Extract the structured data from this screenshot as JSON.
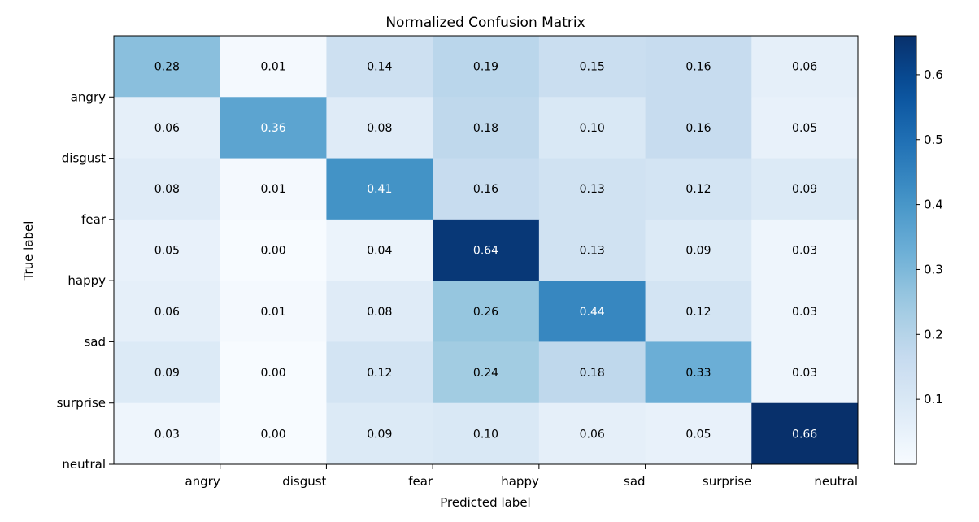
{
  "chart_data": {
    "type": "heatmap",
    "title": "Normalized Confusion Matrix",
    "xlabel": "Predicted label",
    "ylabel": "True label",
    "x_tick_labels": [
      "angry",
      "disgust",
      "fear",
      "happy",
      "sad",
      "surprise",
      "neutral"
    ],
    "y_tick_labels": [
      "angry",
      "disgust",
      "fear",
      "happy",
      "sad",
      "surprise",
      "neutral"
    ],
    "matrix": [
      [
        0.28,
        0.01,
        0.14,
        0.19,
        0.15,
        0.16,
        0.06
      ],
      [
        0.06,
        0.36,
        0.08,
        0.18,
        0.1,
        0.16,
        0.05
      ],
      [
        0.08,
        0.01,
        0.41,
        0.16,
        0.13,
        0.12,
        0.09
      ],
      [
        0.05,
        0.0,
        0.04,
        0.64,
        0.13,
        0.09,
        0.03
      ],
      [
        0.06,
        0.01,
        0.08,
        0.26,
        0.44,
        0.12,
        0.03
      ],
      [
        0.09,
        0.0,
        0.12,
        0.24,
        0.18,
        0.33,
        0.03
      ],
      [
        0.03,
        0.0,
        0.09,
        0.1,
        0.06,
        0.05,
        0.66
      ]
    ],
    "colormap": "Blues",
    "colorbar": {
      "range": [
        0.0,
        0.66
      ],
      "ticks": [
        0.1,
        0.2,
        0.3,
        0.4,
        0.5,
        0.6
      ],
      "tick_labels": [
        "0.1",
        "0.2",
        "0.3",
        "0.4",
        "0.5",
        "0.6"
      ]
    },
    "grid": false
  }
}
